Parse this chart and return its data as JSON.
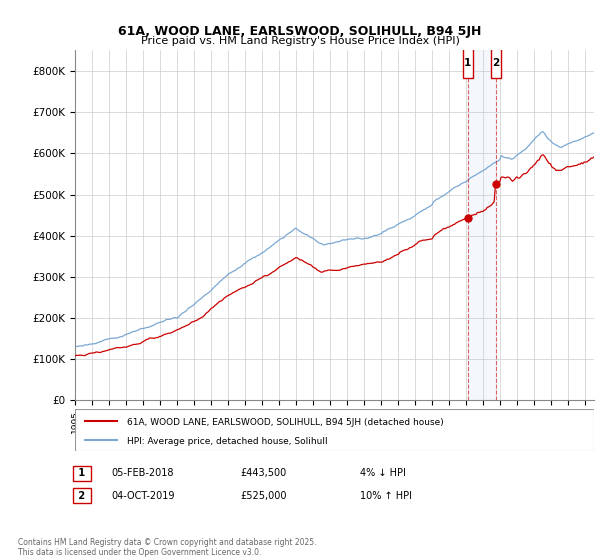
{
  "title": "61A, WOOD LANE, EARLSWOOD, SOLIHULL, B94 5JH",
  "subtitle": "Price paid vs. HM Land Registry's House Price Index (HPI)",
  "ytick_values": [
    0,
    100000,
    200000,
    300000,
    400000,
    500000,
    600000,
    700000,
    800000
  ],
  "ylim": [
    0,
    850000
  ],
  "xlim_start": 1995.0,
  "xlim_end": 2025.5,
  "legend_label_red": "61A, WOOD LANE, EARLSWOOD, SOLIHULL, B94 5JH (detached house)",
  "legend_label_blue": "HPI: Average price, detached house, Solihull",
  "transaction1_date": "05-FEB-2018",
  "transaction1_price": "£443,500",
  "transaction1_hpi": "4% ↓ HPI",
  "transaction2_date": "04-OCT-2019",
  "transaction2_price": "£525,000",
  "transaction2_hpi": "10% ↑ HPI",
  "footer": "Contains HM Land Registry data © Crown copyright and database right 2025.\nThis data is licensed under the Open Government Licence v3.0.",
  "red_color": "#cc0000",
  "blue_color": "#7aa8d2",
  "marker1_x": 2018.09,
  "marker2_x": 2019.75,
  "shading_x1": 2018.09,
  "shading_x2": 2019.75,
  "grid_color": "#cccccc",
  "transaction1_y": 443500,
  "transaction2_y": 525000
}
